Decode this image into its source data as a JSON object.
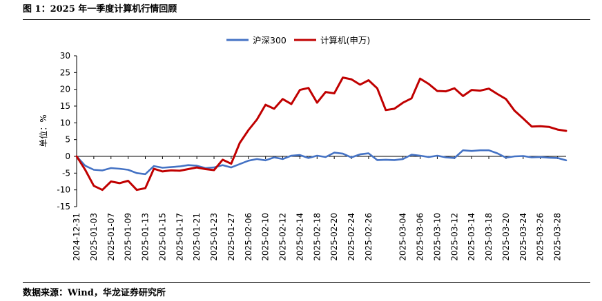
{
  "figure": {
    "title": "图 1：2025 年一季度计算机行情回顾",
    "source": "数据来源：Wind，华龙证券研究所"
  },
  "chart_data": {
    "type": "line",
    "ylabel": "单位：%",
    "ylim": [
      -15,
      30
    ],
    "yticks": [
      -15,
      -10,
      -5,
      0,
      5,
      10,
      15,
      20,
      25,
      30
    ],
    "grid": false,
    "legend_position": "top-center",
    "x": [
      "2024-12-31",
      "2025-01-02",
      "2025-01-03",
      "2025-01-06",
      "2025-01-07",
      "2025-01-08",
      "2025-01-09",
      "2025-01-10",
      "2025-01-13",
      "2025-01-14",
      "2025-01-15",
      "2025-01-16",
      "2025-01-17",
      "2025-01-20",
      "2025-01-21",
      "2025-01-22",
      "2025-01-23",
      "2025-01-24",
      "2025-01-27",
      "2025-02-05",
      "2025-02-06",
      "2025-02-07",
      "2025-02-10",
      "2025-02-11",
      "2025-02-12",
      "2025-02-13",
      "2025-02-14",
      "2025-02-17",
      "2025-02-18",
      "2025-02-19",
      "2025-02-20",
      "2025-02-21",
      "2025-02-24",
      "2025-02-25",
      "2025-02-26",
      "2025-02-27",
      "2025-02-28",
      "2025-03-03",
      "2025-03-04",
      "2025-03-05",
      "2025-03-06",
      "2025-03-07",
      "2025-03-10",
      "2025-03-11",
      "2025-03-12",
      "2025-03-13",
      "2025-03-14",
      "2025-03-17",
      "2025-03-18",
      "2025-03-19",
      "2025-03-20",
      "2025-03-21",
      "2025-03-24",
      "2025-03-25",
      "2025-03-26",
      "2025-03-27",
      "2025-03-28",
      "2025-03-31"
    ],
    "xtick_labels": [
      "2024-12-31",
      "2025-01-03",
      "2025-01-07",
      "2025-01-09",
      "2025-01-13",
      "2025-01-15",
      "2025-01-17",
      "2025-01-21",
      "2025-01-23",
      "2025-01-27",
      "2025-02-06",
      "2025-02-10",
      "2025-02-12",
      "2025-02-14",
      "2025-02-18",
      "2025-02-20",
      "2025-02-24",
      "2025-02-26",
      "2025-03-04",
      "2025-03-06",
      "2025-03-10",
      "2025-03-12",
      "2025-03-14",
      "2025-03-18",
      "2025-03-20",
      "2025-03-24",
      "2025-03-26",
      "2025-03-28"
    ],
    "series": [
      {
        "name": "沪深300",
        "color": "#4472C4",
        "values": [
          0.0,
          -2.8,
          -4.0,
          -4.2,
          -3.5,
          -3.7,
          -4.0,
          -5.0,
          -5.3,
          -2.9,
          -3.4,
          -3.2,
          -3.0,
          -2.6,
          -2.8,
          -3.5,
          -3.3,
          -2.6,
          -3.3,
          -2.3,
          -1.3,
          -0.8,
          -1.2,
          -0.3,
          -0.8,
          0.2,
          0.4,
          -0.5,
          0.2,
          -0.2,
          1.1,
          0.8,
          -0.3,
          0.6,
          0.9,
          -1.1,
          -1.0,
          -1.1,
          -0.8,
          0.5,
          0.2,
          -0.2,
          0.2,
          -0.3,
          -0.5,
          1.8,
          1.6,
          1.8,
          1.8,
          0.9,
          -0.4,
          0.0,
          0.1,
          -0.3,
          -0.2,
          -0.4,
          -0.5,
          -1.2
        ]
      },
      {
        "name": "计算机(申万)",
        "color": "#C00000",
        "values": [
          0.0,
          -4.0,
          -8.8,
          -10.0,
          -7.5,
          -8.0,
          -7.3,
          -10.0,
          -9.5,
          -3.7,
          -4.5,
          -4.2,
          -4.3,
          -3.8,
          -3.3,
          -3.8,
          -4.1,
          -1.0,
          -2.2,
          4.0,
          7.8,
          11.0,
          15.4,
          14.2,
          17.1,
          15.6,
          19.8,
          20.4,
          16.0,
          19.2,
          18.8,
          23.5,
          23.0,
          21.4,
          22.7,
          20.3,
          13.8,
          14.2,
          16.0,
          17.3,
          23.2,
          21.6,
          19.5,
          19.4,
          20.3,
          18.0,
          19.8,
          19.6,
          20.2,
          18.6,
          17.1,
          13.6,
          11.3,
          8.9,
          9.0,
          8.8,
          8.0,
          7.6
        ]
      }
    ]
  }
}
